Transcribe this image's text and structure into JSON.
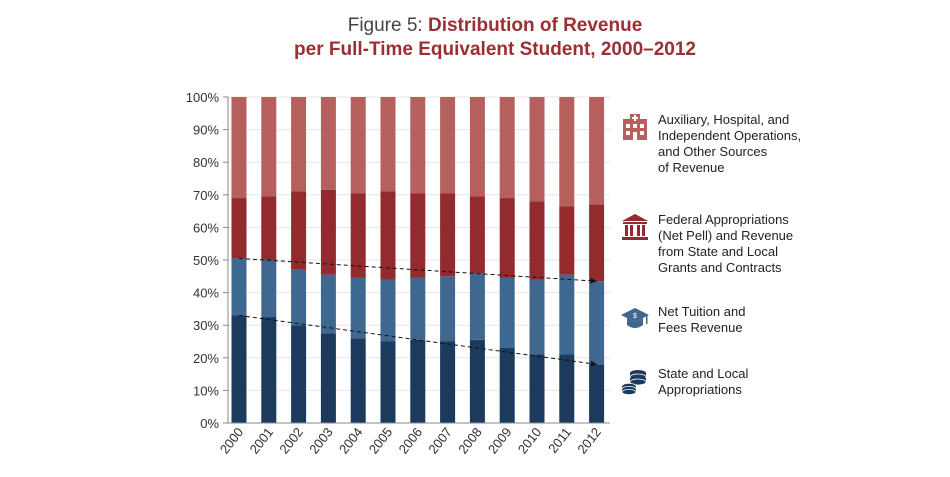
{
  "title": {
    "lead": "Figure 5:",
    "line1": "Distribution of Revenue",
    "line2": "per Full-Time Equivalent Student, 2000–2012"
  },
  "chart_data": {
    "type": "bar",
    "stacked": true,
    "categories": [
      "2000",
      "2001",
      "2002",
      "2003",
      "2004",
      "2005",
      "2006",
      "2007",
      "2008",
      "2009",
      "2010",
      "2011",
      "2012"
    ],
    "y_ticks": [
      "0%",
      "10%",
      "20%",
      "30%",
      "40%",
      "50%",
      "60%",
      "70%",
      "80%",
      "90%",
      "100%"
    ],
    "ylim": [
      0,
      100
    ],
    "series": [
      {
        "name": "State and Local Appropriations",
        "color": "#1b3a5c",
        "values": [
          33,
          32.5,
          30,
          27.5,
          26,
          25,
          25.5,
          25,
          25.5,
          23,
          21,
          21,
          18
        ]
      },
      {
        "name": "Net Tuition and Fees Revenue",
        "color": "#3e6890",
        "values": [
          17.5,
          17.5,
          17,
          18,
          18.5,
          19,
          19,
          20,
          20.5,
          21.5,
          23,
          24.5,
          25.5
        ]
      },
      {
        "name": "Federal Appropriations (Net Pell) and Revenue from State and Local Grants and Contracts",
        "color": "#922a2e",
        "values": [
          18.5,
          19.5,
          24,
          26,
          26,
          27,
          26,
          25.5,
          23.5,
          24.5,
          24,
          21,
          23.5
        ]
      },
      {
        "name": "Auxiliary, Hospital, and Independent Operations, and Other Sources of Revenue",
        "color": "#b5605c",
        "values": [
          31,
          30.5,
          29,
          28.5,
          29.5,
          29,
          29.5,
          29.5,
          30.5,
          31,
          32,
          33.5,
          33
        ]
      }
    ],
    "trend_lines": [
      {
        "from": [
          "2000",
          33
        ],
        "to": [
          "2012",
          18
        ]
      },
      {
        "from": [
          "2000",
          50.5
        ],
        "to": [
          "2012",
          43.5
        ]
      }
    ],
    "legend": "right"
  },
  "legend": [
    {
      "icon": "hospital-icon",
      "lines": [
        "Auxiliary, Hospital, and",
        "Independent Operations,",
        "and Other Sources",
        "of Revenue"
      ],
      "color": "#b5605c"
    },
    {
      "icon": "government-building-icon",
      "lines": [
        "Federal Appropriations",
        "(Net Pell) and Revenue",
        "from State and Local",
        "Grants and Contracts"
      ],
      "color": "#922a2e"
    },
    {
      "icon": "graduation-cap-icon",
      "lines": [
        "Net Tuition and",
        "Fees Revenue"
      ],
      "color": "#3e6890"
    },
    {
      "icon": "coins-icon",
      "lines": [
        "State and Local",
        "Appropriations"
      ],
      "color": "#1b3a5c"
    }
  ]
}
